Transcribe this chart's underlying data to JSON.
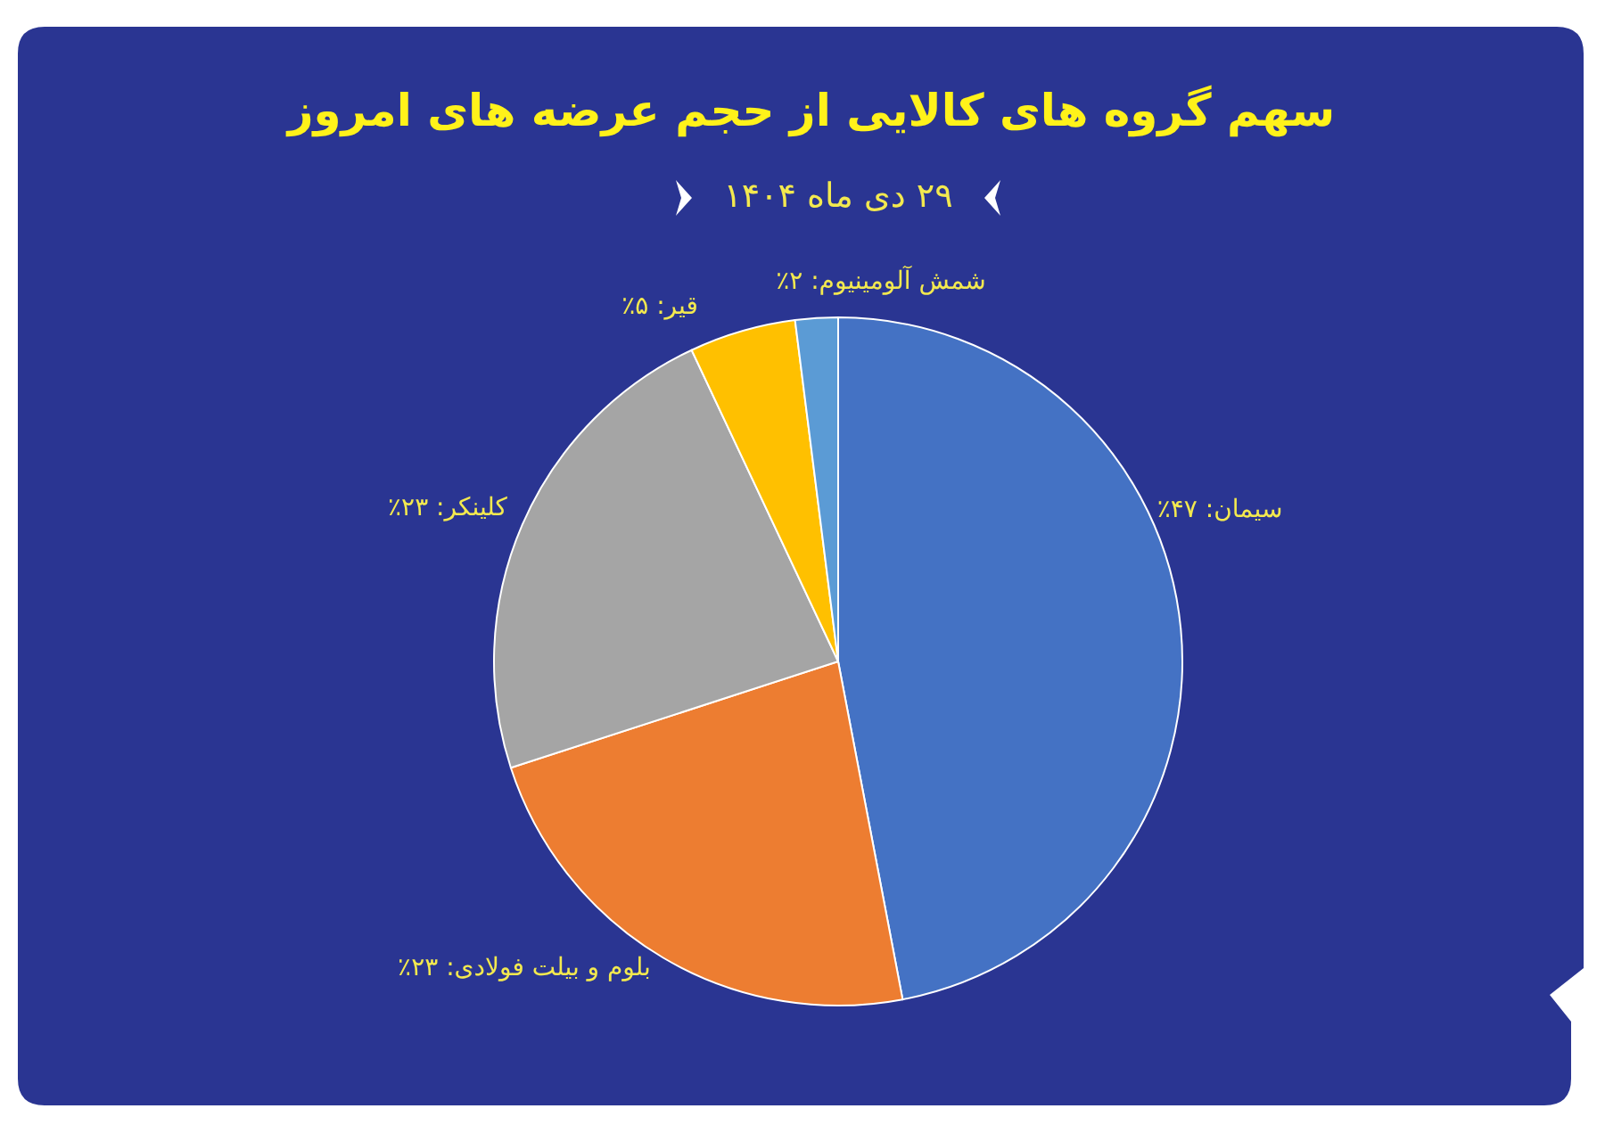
{
  "chart_data": {
    "type": "pie",
    "title": "سهم گروه های کالایی از حجم عرضه های امروز",
    "subtitle": "۲۹ دی ماه ۱۴۰۴",
    "categories": [
      "سیمان",
      "بلوم و بیلت فولادی",
      "کلینکر",
      "قیر",
      "شمش آلومینیوم"
    ],
    "values": [
      47,
      23,
      23,
      5,
      2
    ],
    "value_labels": [
      "۴۷٪",
      "۲۳٪",
      "۲۳٪",
      "۵٪",
      "۲٪"
    ],
    "colors": [
      "#4472c4",
      "#ed7d31",
      "#a5a5a5",
      "#ffc000",
      "#5b9bd5"
    ]
  }
}
